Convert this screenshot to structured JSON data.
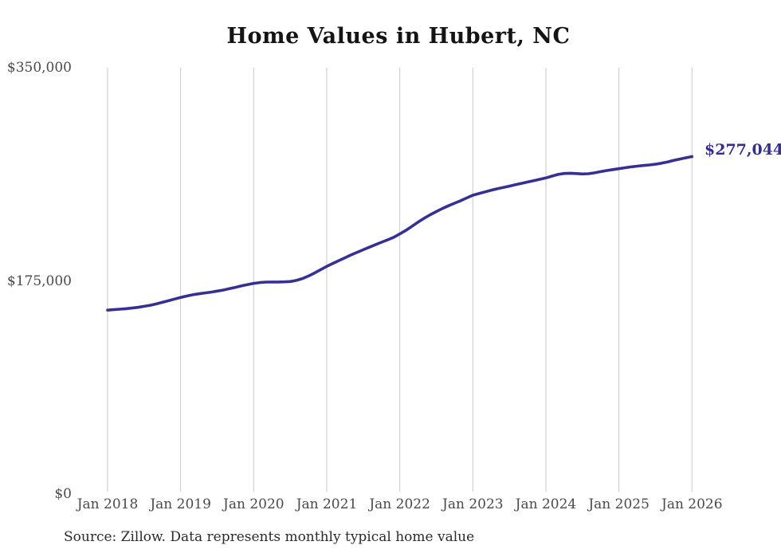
{
  "chart_data": {
    "type": "line",
    "title": "Home Values in Hubert, NC",
    "source_note": "Source: Zillow. Data represents monthly typical home value",
    "xlabel": "",
    "ylabel": "",
    "x_interval": "monthly",
    "x_range": [
      "Jan 2018",
      "Jan 2026"
    ],
    "x_tick_labels": [
      "Jan 2018",
      "Jan 2019",
      "Jan 2020",
      "Jan 2021",
      "Jan 2022",
      "Jan 2023",
      "Jan 2024",
      "Jan 2025",
      "Jan 2026"
    ],
    "x_tick_month_index": [
      0,
      12,
      24,
      36,
      48,
      60,
      72,
      84,
      96
    ],
    "y_tick_labels": [
      "$0",
      "$175,000",
      "$350,000"
    ],
    "y_tick_values": [
      0,
      175000,
      350000
    ],
    "ylim": [
      0,
      350000
    ],
    "grid": "vertical-only",
    "legend": "none",
    "end_label": "$277,044",
    "last_value": 277044,
    "series": [
      {
        "name": "Typical home value",
        "values": [
          151000,
          151400,
          151800,
          152200,
          152700,
          153300,
          154100,
          155000,
          156100,
          157400,
          158700,
          160100,
          161400,
          162600,
          163600,
          164400,
          165100,
          165800,
          166600,
          167500,
          168600,
          169700,
          170900,
          172000,
          173000,
          173600,
          174000,
          174100,
          174100,
          174200,
          174500,
          175400,
          176900,
          179000,
          181500,
          184200,
          186900,
          189300,
          191700,
          194000,
          196300,
          198500,
          200600,
          202700,
          204700,
          206700,
          208700,
          210800,
          213500,
          216500,
          219800,
          223200,
          226400,
          229300,
          231900,
          234400,
          236700,
          238800,
          240800,
          243100,
          245300,
          246700,
          248100,
          249400,
          250600,
          251700,
          252800,
          254000,
          255100,
          256200,
          257300,
          258400,
          259500,
          261000,
          262400,
          263200,
          263400,
          263100,
          262800,
          263000,
          263700,
          264700,
          265600,
          266400,
          267100,
          267900,
          268600,
          269200,
          269700,
          270200,
          270800,
          271600,
          272700,
          273900,
          275000,
          276100,
          277044
        ]
      }
    ],
    "colors": {
      "line": "#363093",
      "end_label": "#332e8c",
      "gridline": "#c9c9c9",
      "tick_text": "#4a4a4a",
      "title_text": "#141414",
      "source_text": "#2b2b2b",
      "background": "#ffffff"
    }
  }
}
